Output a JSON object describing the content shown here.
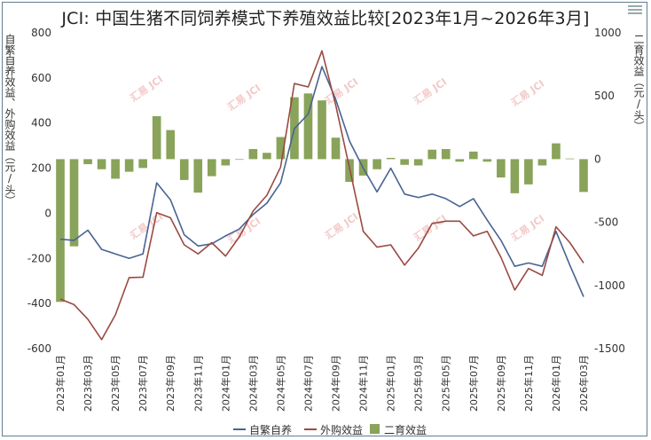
{
  "chart_data": {
    "type": "bar+line",
    "title": "JCI: 中国生猪不同饲养模式下养殖效益比较[2023年1月~2026年3月]",
    "ylabel_left": "自繁自养效益、外购效益（元/头）",
    "ylabel_right": "二育效益（元/头）",
    "ylim_left": [
      -600,
      800
    ],
    "ylim_right": [
      -1500,
      1000
    ],
    "yticks_left": [
      "800",
      "600",
      "400",
      "200",
      "0",
      "-200",
      "-400",
      "-600"
    ],
    "yticks_right": [
      "1000",
      "500",
      "0",
      "-500",
      "-1000",
      "-1500"
    ],
    "x": [
      "2023年01月",
      "2023年02月",
      "2023年03月",
      "2023年04月",
      "2023年05月",
      "2023年06月",
      "2023年07月",
      "2023年08月",
      "2023年09月",
      "2023年10月",
      "2023年11月",
      "2023年12月",
      "2024年01月",
      "2024年02月",
      "2024年03月",
      "2024年04月",
      "2024年05月",
      "2024年06月",
      "2024年07月",
      "2024年08月",
      "2024年09月",
      "2024年10月",
      "2024年11月",
      "2024年12月",
      "2025年01月",
      "2025年02月",
      "2025年03月",
      "2025年04月",
      "2025年05月",
      "2025年06月",
      "2025年07月",
      "2025年08月",
      "2025年09月",
      "2025年10月",
      "2025年11月",
      "2025年12月",
      "2026年01月",
      "2026年02月",
      "2026年03月"
    ],
    "x_tick_labels": [
      "2023年01月",
      "2023年03月",
      "2023年05月",
      "2023年07月",
      "2023年09月",
      "2023年11月",
      "2024年01月",
      "2024年03月",
      "2024年05月",
      "2024年07月",
      "2024年09月",
      "2024年11月",
      "2025年01月",
      "2025年03月",
      "2025年05月",
      "2025年07月",
      "2025年09月",
      "2025年11月",
      "2026年01月",
      "2026年03月"
    ],
    "series": [
      {
        "name": "自繁自养",
        "type": "line",
        "axis": "left",
        "color": "#4a6393",
        "values": [
          -115,
          -120,
          -75,
          -160,
          -180,
          -200,
          -180,
          135,
          60,
          -95,
          -145,
          -135,
          -100,
          -70,
          -5,
          45,
          135,
          375,
          440,
          650,
          505,
          320,
          200,
          95,
          200,
          85,
          70,
          85,
          65,
          30,
          65,
          -30,
          -120,
          -235,
          -220,
          -235,
          -80,
          -230,
          -370
        ]
      },
      {
        "name": "外购效益",
        "type": "line",
        "axis": "left",
        "color": "#9a4a42",
        "values": [
          -380,
          -405,
          -470,
          -560,
          -450,
          -285,
          -283,
          3,
          -20,
          -140,
          -180,
          -130,
          -190,
          -105,
          10,
          80,
          205,
          575,
          560,
          720,
          480,
          200,
          -80,
          -150,
          -140,
          -230,
          -155,
          -45,
          -35,
          -35,
          -100,
          -80,
          -195,
          -340,
          -245,
          -275,
          -60,
          -130,
          -220
        ]
      },
      {
        "name": "二育效益",
        "type": "bar",
        "axis": "right",
        "color": "#89a35a",
        "values": [
          -1130,
          -690,
          -40,
          -80,
          -155,
          -100,
          -70,
          340,
          230,
          -165,
          -265,
          -135,
          -50,
          -5,
          80,
          50,
          175,
          490,
          520,
          465,
          170,
          -180,
          -130,
          -80,
          10,
          -45,
          -50,
          75,
          80,
          -20,
          60,
          -20,
          -145,
          -270,
          -200,
          -50,
          125,
          5,
          -260
        ]
      }
    ],
    "legend": [
      "自繁自养",
      "外购效益",
      "二育效益"
    ],
    "legend_position": "bottom",
    "watermark": "汇易 JCI"
  }
}
